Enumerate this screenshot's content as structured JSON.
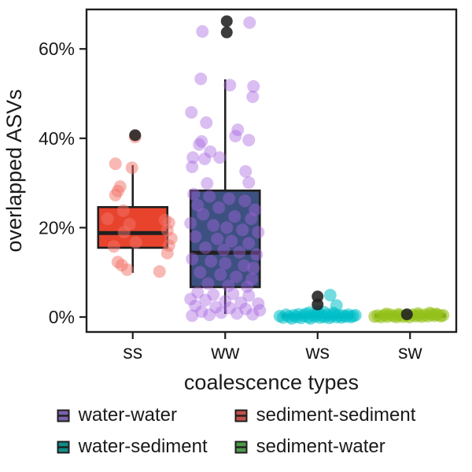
{
  "figure": {
    "background": "#ffffff",
    "axis_color": "#1f1f1f",
    "text_color": "#1a1a1a"
  },
  "chart_data": {
    "type": "boxplot",
    "title": "",
    "xlabel": "coalescence types",
    "ylabel": "overlapped ASVs",
    "categories": [
      "ss",
      "ww",
      "ws",
      "sw"
    ],
    "ylim": [
      -3.4,
      68.8
    ],
    "grid": false,
    "y_ticks": [
      {
        "value": 0,
        "label": "0%"
      },
      {
        "value": 20,
        "label": "20%"
      },
      {
        "value": 40,
        "label": "40%"
      },
      {
        "value": 60,
        "label": "60%"
      }
    ],
    "series": [
      {
        "name": "ss",
        "legend_label": "sediment-sediment",
        "box_fill": "#e8432d",
        "point_color": "rgba(242,116,106,0.5)",
        "box": {
          "whisker_low": 9.9,
          "q1": 15.5,
          "median": 18.8,
          "q3": 24.6,
          "whisker_high": 34
        },
        "outliers": [
          [
            3,
            40.7
          ]
        ],
        "points": [
          [
            -22,
            34.3
          ],
          [
            -1,
            33.4
          ],
          [
            -16,
            29.2
          ],
          [
            -19,
            28.2
          ],
          [
            -22,
            27.3
          ],
          [
            -12,
            23.8
          ],
          [
            -32,
            22
          ],
          [
            41,
            21.7
          ],
          [
            46,
            21.1
          ],
          [
            -4,
            20.8
          ],
          [
            44,
            19.4
          ],
          [
            -11,
            19
          ],
          [
            49,
            17.6
          ],
          [
            4,
            16.7
          ],
          [
            -24,
            15.8
          ],
          [
            46,
            16
          ],
          [
            44,
            14.3
          ],
          [
            -19,
            12.3
          ],
          [
            -14,
            11.6
          ],
          [
            -7,
            10.6
          ],
          [
            34,
            10.2
          ],
          [
            3,
            40.3
          ]
        ]
      },
      {
        "name": "ww",
        "legend_label": "water-water",
        "box_fill": "#3d5181",
        "point_color": "rgba(166,99,224,0.42)",
        "box": {
          "whisker_low": 0.7,
          "q1": 6.7,
          "median": 14.4,
          "q3": 28.3,
          "whisker_high": 53.2
        },
        "outliers": [
          [
            2,
            66.2
          ],
          [
            2,
            63.7
          ]
        ],
        "points": [
          [
            -29,
            63.9
          ],
          [
            31,
            65.9
          ],
          [
            -31,
            53.3
          ],
          [
            6,
            51.9
          ],
          [
            36,
            51.6
          ],
          [
            35,
            49.3
          ],
          [
            -43,
            45.8
          ],
          [
            -24,
            43.5
          ],
          [
            16,
            41.9
          ],
          [
            13,
            40.5
          ],
          [
            30,
            39.6
          ],
          [
            -30,
            39.3
          ],
          [
            -33,
            38.6
          ],
          [
            -19,
            37
          ],
          [
            -41,
            35.7
          ],
          [
            -26,
            35.4
          ],
          [
            -7,
            35.7
          ],
          [
            -42,
            33.6
          ],
          [
            26,
            32.6
          ],
          [
            30,
            30.1
          ],
          [
            -23,
            29.9
          ],
          [
            -40,
            27.5
          ],
          [
            -20,
            27
          ],
          [
            5,
            26.5
          ],
          [
            25,
            26
          ],
          [
            -35,
            25
          ],
          [
            -8,
            24.5
          ],
          [
            38,
            24
          ],
          [
            -28,
            23
          ],
          [
            12,
            22.5
          ],
          [
            33,
            22
          ],
          [
            -44,
            21
          ],
          [
            -15,
            20.5
          ],
          [
            2,
            20
          ],
          [
            22,
            19.5
          ],
          [
            42,
            19
          ],
          [
            -38,
            18
          ],
          [
            -10,
            17.5
          ],
          [
            8,
            17
          ],
          [
            30,
            16.5
          ],
          [
            -25,
            15.5
          ],
          [
            -2,
            15
          ],
          [
            18,
            14.5
          ],
          [
            40,
            14
          ],
          [
            -42,
            13
          ],
          [
            -18,
            12.5
          ],
          [
            0,
            12
          ],
          [
            24,
            11.5
          ],
          [
            36,
            11
          ],
          [
            -32,
            10
          ],
          [
            -6,
            9.5
          ],
          [
            14,
            9
          ],
          [
            34,
            8.5
          ],
          [
            -22,
            7.5
          ],
          [
            4,
            7
          ],
          [
            28,
            6.8
          ],
          [
            -35,
            5.5
          ],
          [
            -15,
            5
          ],
          [
            10,
            5.2
          ],
          [
            30,
            4.8
          ],
          [
            -44,
            4
          ],
          [
            -25,
            3.8
          ],
          [
            0,
            3.5
          ],
          [
            20,
            3.2
          ],
          [
            42,
            3
          ],
          [
            -38,
            2.5
          ],
          [
            -12,
            2.2
          ],
          [
            6,
            2
          ],
          [
            26,
            1.8
          ],
          [
            44,
            1.5
          ],
          [
            -30,
            1.2
          ],
          [
            -5,
            1
          ],
          [
            15,
            0.8
          ],
          [
            35,
            0.6
          ],
          [
            -20,
            0.5
          ],
          [
            -42,
            0.3
          ]
        ]
      },
      {
        "name": "ws",
        "legend_label": "water-sediment",
        "box_fill": "#108d89",
        "point_color": "rgba(0,192,201,0.55)",
        "box": {
          "whisker_low": -0.2,
          "q1": 0,
          "median": 0.2,
          "q3": 0.5,
          "whisker_high": 1.2
        },
        "outliers": [
          [
            0,
            4.6
          ],
          [
            0,
            2.8
          ]
        ],
        "points": [
          [
            -48,
            0.2
          ],
          [
            -44,
            -0.1
          ],
          [
            -40,
            0.5
          ],
          [
            -36,
            0.1
          ],
          [
            -33,
            -0.3
          ],
          [
            -30,
            0.4
          ],
          [
            -27,
            0
          ],
          [
            -24,
            0.6
          ],
          [
            -21,
            -0.2
          ],
          [
            -18,
            0.3
          ],
          [
            -15,
            0.7
          ],
          [
            -12,
            0
          ],
          [
            -9,
            -0.3
          ],
          [
            -6,
            0.5
          ],
          [
            -3,
            0.1
          ],
          [
            0,
            0.6
          ],
          [
            3,
            -0.1
          ],
          [
            6,
            0.3
          ],
          [
            9,
            0
          ],
          [
            12,
            0.5
          ],
          [
            15,
            -0.2
          ],
          [
            18,
            0.2
          ],
          [
            21,
            0.6
          ],
          [
            24,
            0
          ],
          [
            27,
            0.4
          ],
          [
            30,
            -0.1
          ],
          [
            33,
            0.3
          ],
          [
            36,
            0.1
          ],
          [
            39,
            0.5
          ],
          [
            42,
            0
          ],
          [
            45,
            0.2
          ],
          [
            48,
            0.4
          ],
          [
            -10,
            1
          ],
          [
            8,
            1.1
          ],
          [
            20,
            0.9
          ],
          [
            0,
            1.3
          ],
          [
            16,
            4.9
          ],
          [
            24,
            2.6
          ]
        ]
      },
      {
        "name": "sw",
        "legend_label": "sediment-water",
        "box_fill": "#4d9a4d",
        "point_color": "rgba(148,193,26,0.6)",
        "box": {
          "whisker_low": -0.1,
          "q1": 0.05,
          "median": 0.25,
          "q3": 0.55,
          "whisker_high": 1.0
        },
        "outliers": [
          [
            -4,
            0.6
          ]
        ],
        "points": [
          [
            -45,
            0.1
          ],
          [
            -41,
            0.3
          ],
          [
            -37,
            0
          ],
          [
            -33,
            0.4
          ],
          [
            -29,
            0.1
          ],
          [
            -25,
            0.5
          ],
          [
            -21,
            0.2
          ],
          [
            -17,
            0
          ],
          [
            -13,
            0.4
          ],
          [
            -9,
            0.1
          ],
          [
            -5,
            0.3
          ],
          [
            -1,
            0
          ],
          [
            3,
            0.5
          ],
          [
            7,
            0.2
          ],
          [
            11,
            0.4
          ],
          [
            15,
            0.1
          ],
          [
            19,
            0.5
          ],
          [
            23,
            0.2
          ],
          [
            27,
            0.6
          ],
          [
            31,
            0.3
          ],
          [
            35,
            0.5
          ],
          [
            39,
            0.2
          ],
          [
            42,
            0.4
          ],
          [
            -30,
            0.7
          ],
          [
            10,
            0.8
          ],
          [
            25,
            0.9
          ],
          [
            33,
            0.7
          ],
          [
            -15,
            0.6
          ]
        ]
      }
    ],
    "outlier_color": "rgba(33,33,33,0.88)",
    "legend": {
      "position": "bottom",
      "columns": 2,
      "items": [
        {
          "label": "water-water",
          "fill": "#7c62a8"
        },
        {
          "label": "sediment-sediment",
          "fill": "#c0504b"
        },
        {
          "label": "water-sediment",
          "fill": "#108d89"
        },
        {
          "label": "sediment-water",
          "fill": "#4d9a4d"
        }
      ]
    }
  }
}
